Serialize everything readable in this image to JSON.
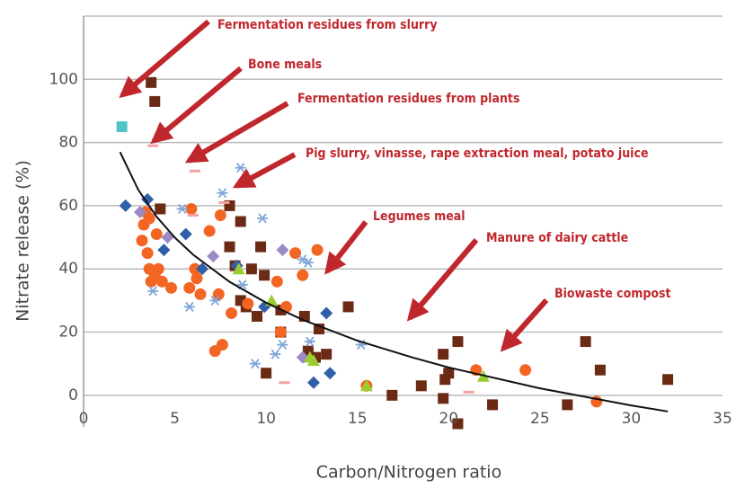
{
  "chart_data": {
    "type": "scatter",
    "xlabel": "Carbon/Nitrogen ratio",
    "ylabel": "Nitrate release (%)",
    "xlim": [
      0,
      35
    ],
    "xticks": [
      0,
      5,
      10,
      15,
      20,
      25,
      30,
      35
    ],
    "ylim": [
      -10,
      120
    ],
    "yticks": [
      0,
      20,
      40,
      60,
      80,
      100
    ],
    "grid": true,
    "annotations": [
      "Fermentation residues from slurry",
      "Bone meals",
      "Fermentation residues from plants",
      "Pig slurry, vinasse, rape extraction meal, potato juice",
      "Legumes meal",
      "Manure of dairy cattle",
      "Biowaste compost"
    ],
    "series": [
      {
        "marker": "square",
        "color": "#6b2a14",
        "x": [
          3.7,
          3.9,
          4.2,
          8,
          8,
          8.6,
          9.7,
          8.3,
          9.2,
          9.9,
          8.9,
          10.8,
          9.5,
          12.1,
          10.8,
          12.3,
          12.9,
          13.3,
          12.7,
          14.5,
          16.9,
          18.5,
          19.7,
          20.5,
          19.8,
          20,
          19.7,
          20.5,
          22.4,
          26.5,
          27.5,
          28.3,
          32,
          10,
          8.6
        ],
        "values": [
          99,
          93,
          59,
          60,
          47,
          55,
          47,
          41,
          40,
          38,
          28,
          27,
          25,
          25,
          20,
          14,
          21,
          13,
          12,
          28,
          0,
          3,
          13,
          17,
          5,
          7,
          -1,
          -9,
          -3,
          -3,
          17,
          8,
          5,
          7,
          30
        ]
      },
      {
        "marker": "circle",
        "color": "#f26522",
        "x": [
          3.4,
          3.6,
          3.3,
          4,
          3.5,
          3.2,
          3.6,
          3.7,
          4.1,
          3.9,
          4.3,
          4.8,
          5.8,
          6.1,
          6.2,
          6.4,
          5.9,
          6.9,
          7.5,
          7.2,
          7.6,
          7.4,
          8.1,
          9,
          10.6,
          11.1,
          10.8,
          11.6,
          12,
          12.8,
          15.5,
          21.5,
          24.2,
          28.1
        ],
        "values": [
          58,
          56,
          54,
          51,
          45,
          49,
          40,
          36,
          40,
          38,
          36,
          34,
          34,
          40,
          37,
          32,
          59,
          52,
          57,
          14,
          16,
          32,
          26,
          29,
          36,
          28,
          20,
          45,
          38,
          46,
          3,
          8,
          8,
          -2
        ]
      },
      {
        "marker": "diamond",
        "color": "#2e5fa8",
        "x": [
          2.3,
          3.5,
          4.4,
          5.6,
          6.5,
          8.4,
          9.9,
          12.6,
          13.3,
          13.5
        ],
        "values": [
          60,
          62,
          46,
          51,
          40,
          41,
          28,
          4,
          26,
          7
        ]
      },
      {
        "marker": "diamond",
        "color": "#9b8ac4",
        "x": [
          3.1,
          4.6,
          7.1,
          10.9,
          12
        ],
        "values": [
          58,
          50,
          44,
          46,
          12
        ]
      },
      {
        "marker": "star",
        "color": "#7fa6d8",
        "x": [
          3.8,
          5.4,
          8.6,
          7.6,
          9.8,
          12,
          12.3,
          7.2,
          8.7,
          9.4,
          10.5,
          10.9,
          12.4,
          15.2,
          5.8
        ],
        "values": [
          33,
          59,
          72,
          64,
          56,
          43,
          42,
          30,
          35,
          10,
          13,
          16,
          17,
          16,
          28
        ]
      },
      {
        "marker": "square",
        "color": "#4fc3c7",
        "x": [
          2.1
        ],
        "values": [
          85
        ]
      },
      {
        "marker": "triangle",
        "color": "#9acd32",
        "x": [
          12.4,
          12.6,
          15.5,
          21.9,
          10.3,
          8.5
        ],
        "values": [
          12,
          11,
          3,
          6,
          30,
          40
        ]
      },
      {
        "marker": "dash",
        "color": "#f4a0a0",
        "x": [
          3.8,
          6.1,
          7.7,
          11,
          6,
          21.1
        ],
        "values": [
          79,
          71,
          61,
          4,
          57,
          1
        ]
      },
      {
        "marker": "line",
        "color": "#111111",
        "x": [
          2,
          3,
          4,
          5,
          6,
          8,
          10,
          12,
          15,
          18,
          20,
          25,
          30,
          32
        ],
        "values": [
          77,
          65,
          56.5,
          49.9,
          44.5,
          35.9,
          29.3,
          23.9,
          17.3,
          12,
          8.8,
          2.2,
          -3.2,
          -5.1
        ]
      }
    ]
  }
}
